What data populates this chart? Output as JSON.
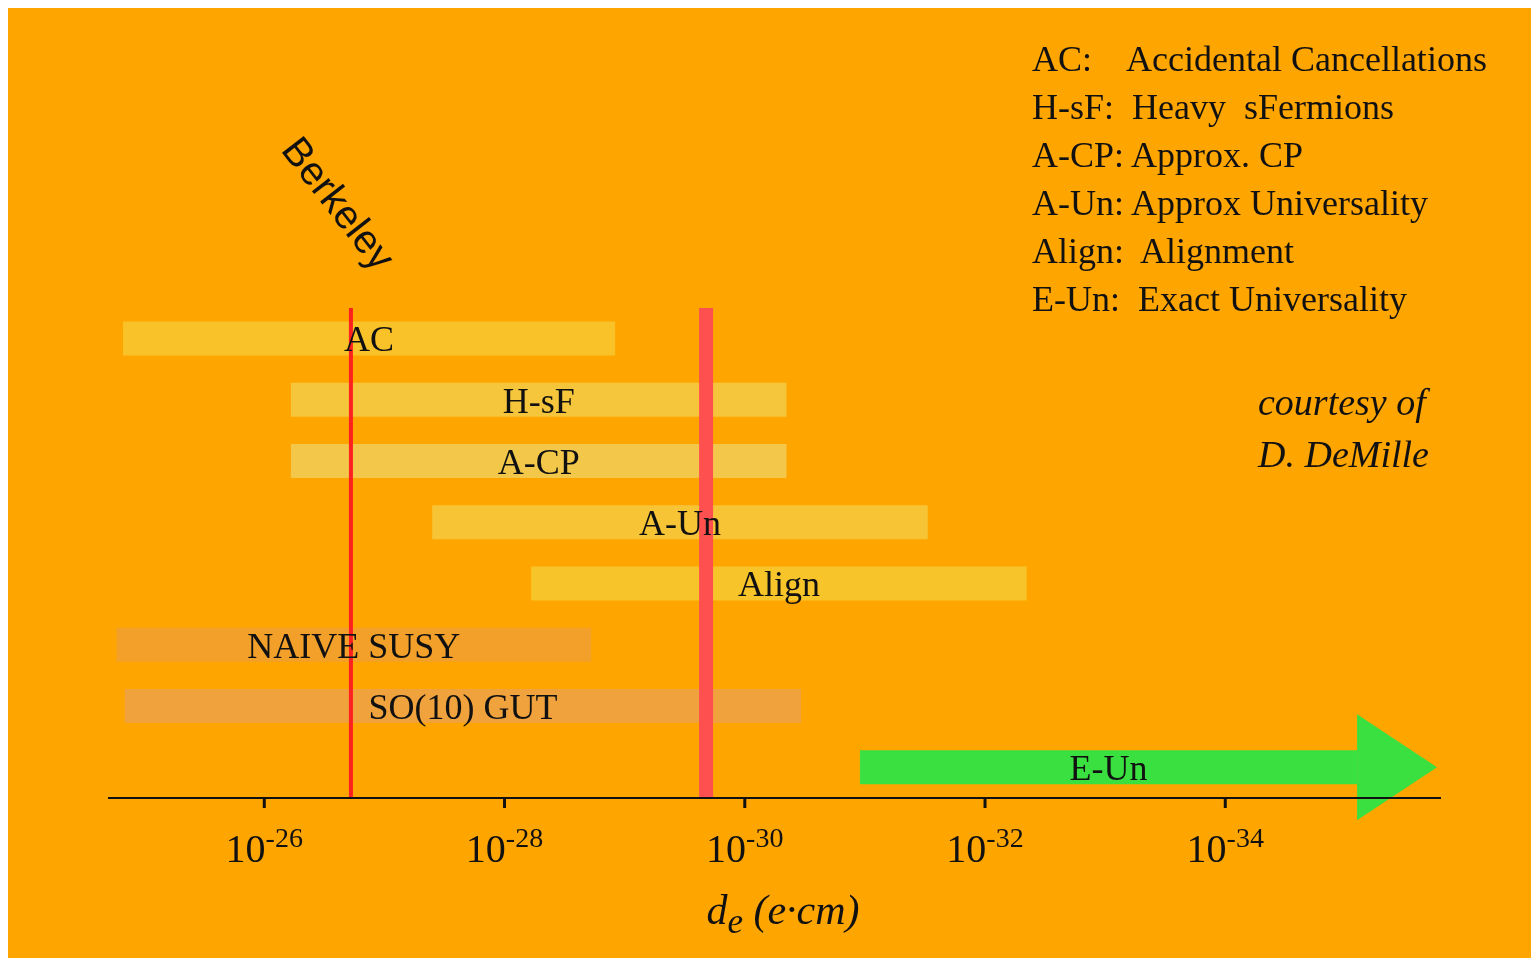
{
  "chart_data": {
    "type": "bar",
    "orientation": "horizontal",
    "xlabel": "d$_{e}$ (e·cm)",
    "categories": [
      "AC",
      "H-sF",
      "A-CP",
      "A-Un",
      "Align",
      "NAIVE SUSY",
      "SO(10) GUT",
      "E-Un"
    ],
    "base": [
      1.2e-29,
      4.5e-31,
      4.5e-31,
      3e-32,
      4.5e-33,
      1.9e-29,
      3.4e-31,
      8e-36
    ],
    "values": [
      1.49988e-25,
      5.99955e-27,
      5.99955e-27,
      3.9997e-28,
      5.99955e-29,
      1.69981e-25,
      1.4499966e-25,
      1.09992e-31
    ],
    "colors": [
      "#f8c228",
      "#f5c63c",
      "#f3c84a",
      "#f6c434",
      "#f7c52a",
      "#f2a02a",
      "#f0a23c",
      "#3ae040"
    ],
    "xlim": [
      2e-25,
      1.6e-36
    ],
    "xticks": [
      {
        "value": 1e-26,
        "label": "10$^{-26}$"
      },
      {
        "value": 1e-28,
        "label": "10$^{-28}$"
      },
      {
        "value": 1e-30,
        "label": "10$^{-30}$"
      },
      {
        "value": 1e-32,
        "label": "10$^{-32}$"
      },
      {
        "value": 1e-34,
        "label": "10$^{-34}$"
      }
    ],
    "log": "x",
    "tick_labels": "x",
    "ref_lines": [
      {
        "axis": "x",
        "value": 1.9e-27,
        "label": "Berkeley",
        "color": "#ff2020"
      },
      {
        "axis": "x",
        "value": 2.1e-30,
        "label": null,
        "color": "#ff5050"
      }
    ],
    "annotations": [
      "AC:    Accidental Cancellations",
      "H-sF:  Heavy  sFermions",
      "A-CP: Approx. CP",
      "A-Un: Approx Universality",
      "Align:  Alignment",
      "E-Un:  Exact Universality",
      "courtesy of D. DeMille"
    ]
  }
}
